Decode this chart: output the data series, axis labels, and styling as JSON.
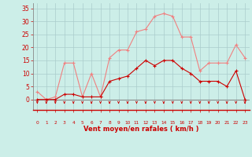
{
  "x": [
    0,
    1,
    2,
    3,
    4,
    5,
    6,
    7,
    8,
    9,
    10,
    11,
    12,
    13,
    14,
    15,
    16,
    17,
    18,
    19,
    20,
    21,
    22,
    23
  ],
  "rafales": [
    3,
    0,
    1,
    14,
    14,
    1,
    10,
    1,
    16,
    19,
    19,
    26,
    27,
    32,
    33,
    32,
    24,
    24,
    11,
    14,
    14,
    14,
    21,
    16
  ],
  "moyen": [
    0,
    0,
    0,
    2,
    2,
    1,
    1,
    1,
    7,
    8,
    9,
    12,
    15,
    13,
    15,
    15,
    12,
    10,
    7,
    7,
    7,
    5,
    11,
    0
  ],
  "color_rafales": "#f08080",
  "color_moyen": "#cc0000",
  "bg_color": "#cceee8",
  "grid_color": "#aacccc",
  "xlabel": "Vent moyen/en rafales ( km/h )",
  "xlabel_color": "#cc0000",
  "ylabel_ticks": [
    0,
    5,
    10,
    15,
    20,
    25,
    30,
    35
  ],
  "ylim": [
    -4,
    37
  ],
  "xlim": [
    -0.5,
    23.5
  ],
  "tick_color": "#cc0000",
  "arrow_color": "#cc0000",
  "spine_color": "#888888"
}
